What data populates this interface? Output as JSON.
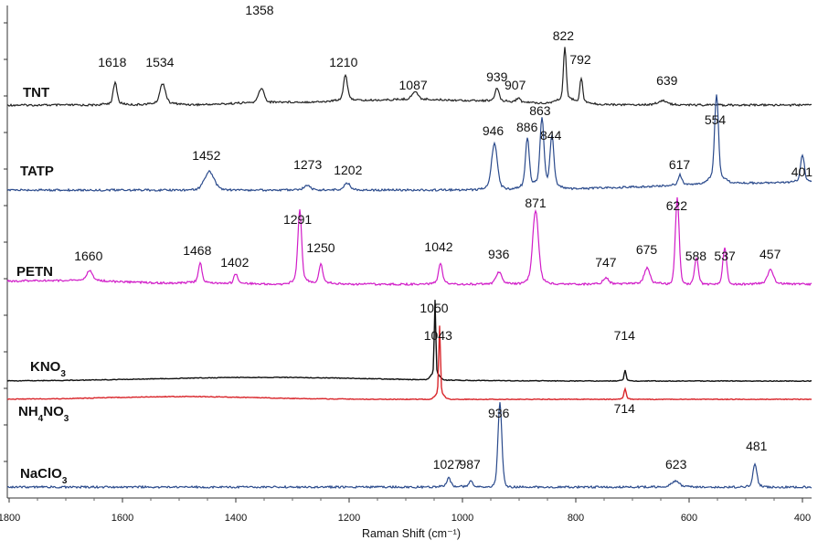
{
  "chart_data": {
    "type": "line",
    "title": "",
    "xlabel": "Raman Shift (cm⁻¹)",
    "ylabel": "",
    "xlim": [
      1800,
      380
    ],
    "x_reversed": true,
    "x_ticks": [
      1800,
      1600,
      1400,
      1200,
      1000,
      800,
      600,
      400
    ],
    "grid": false,
    "series": [
      {
        "name": "TNT",
        "name_main": "TNT",
        "name_sub": "",
        "name_suffix": "",
        "color": "#222222",
        "peaks": [
          {
            "x": 1618,
            "label": "1618"
          },
          {
            "x": 1534,
            "label": "1534"
          },
          {
            "x": 1358,
            "label": "1358"
          },
          {
            "x": 1210,
            "label": "1210"
          },
          {
            "x": 1087,
            "label": "1087"
          },
          {
            "x": 939,
            "label": "939"
          },
          {
            "x": 907,
            "label": "907"
          },
          {
            "x": 822,
            "label": "822"
          },
          {
            "x": 792,
            "label": "792"
          },
          {
            "x": 639,
            "label": "639"
          }
        ]
      },
      {
        "name": "TATP",
        "name_main": "TATP",
        "name_sub": "",
        "name_suffix": "",
        "color": "#2a4a8c",
        "peaks": [
          {
            "x": 1452,
            "label": "1452"
          },
          {
            "x": 1273,
            "label": "1273"
          },
          {
            "x": 1202,
            "label": "1202"
          },
          {
            "x": 946,
            "label": "946"
          },
          {
            "x": 886,
            "label": "886"
          },
          {
            "x": 863,
            "label": "863"
          },
          {
            "x": 844,
            "label": "844"
          },
          {
            "x": 617,
            "label": "617"
          },
          {
            "x": 554,
            "label": "554"
          },
          {
            "x": 401,
            "label": "401"
          }
        ]
      },
      {
        "name": "PETN",
        "name_main": "PETN",
        "name_sub": "",
        "name_suffix": "",
        "color": "#d11cc8",
        "peaks": [
          {
            "x": 1660,
            "label": "1660"
          },
          {
            "x": 1468,
            "label": "1468"
          },
          {
            "x": 1402,
            "label": "1402"
          },
          {
            "x": 1291,
            "label": "1291"
          },
          {
            "x": 1250,
            "label": "1250"
          },
          {
            "x": 1042,
            "label": "1042"
          },
          {
            "x": 936,
            "label": "936"
          },
          {
            "x": 871,
            "label": "871"
          },
          {
            "x": 747,
            "label": "747"
          },
          {
            "x": 675,
            "label": "675"
          },
          {
            "x": 622,
            "label": "622"
          },
          {
            "x": 588,
            "label": "588"
          },
          {
            "x": 537,
            "label": "537"
          },
          {
            "x": 457,
            "label": "457"
          }
        ]
      },
      {
        "name": "KNO3",
        "name_main": "KNO",
        "name_sub": "3",
        "name_suffix": "",
        "color": "#111111",
        "peaks": [
          {
            "x": 1050,
            "label": "1050"
          },
          {
            "x": 714,
            "label": "714"
          }
        ]
      },
      {
        "name": "NH4NO3",
        "name_main": "NH",
        "name_sub": "4",
        "name_suffix": "NO",
        "name_sub2": "3",
        "color": "#d9262b",
        "peaks": [
          {
            "x": 1043,
            "label": "1043"
          },
          {
            "x": 714,
            "label": "714"
          }
        ]
      },
      {
        "name": "NaClO3",
        "name_main": "NaClO",
        "name_sub": "3",
        "name_suffix": "",
        "color": "#2a4a8c",
        "peaks": [
          {
            "x": 1027,
            "label": "1027"
          },
          {
            "x": 987,
            "label": "987"
          },
          {
            "x": 936,
            "label": "936"
          },
          {
            "x": 623,
            "label": "623"
          },
          {
            "x": 481,
            "label": "481"
          }
        ]
      }
    ]
  }
}
